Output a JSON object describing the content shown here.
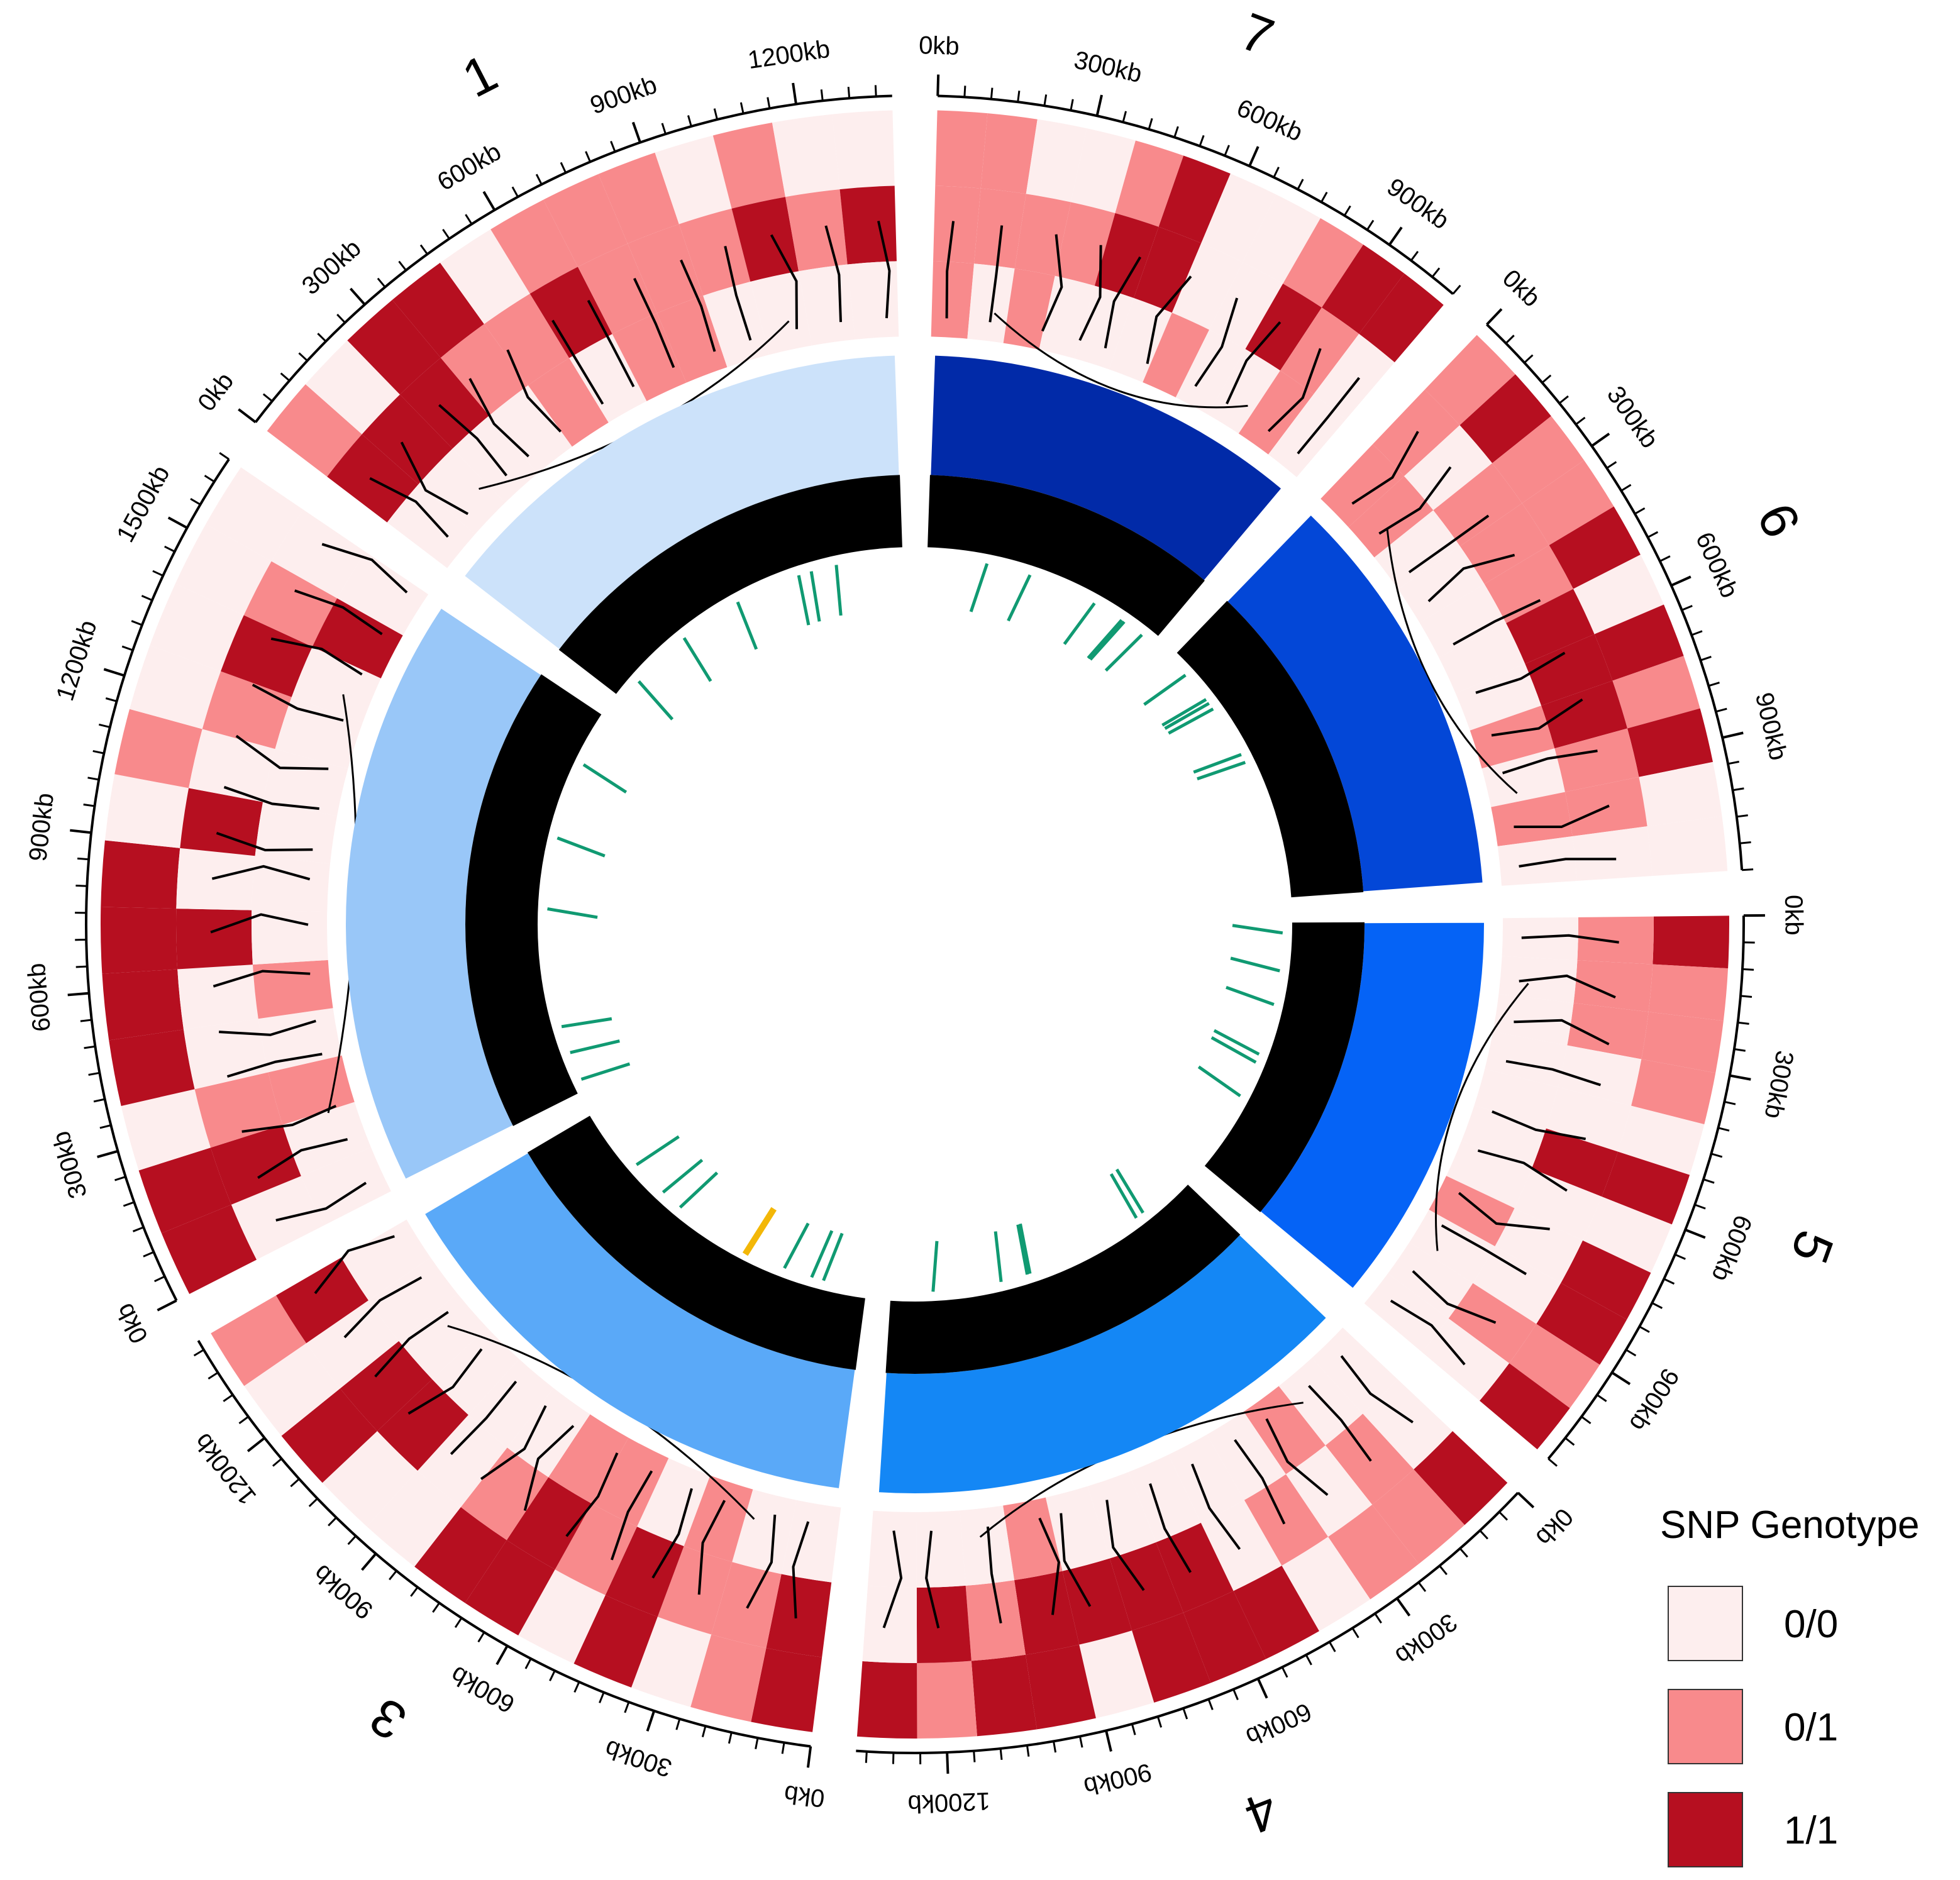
{
  "chart_data": {
    "type": "circos",
    "title": "",
    "chromosomes": [
      {
        "id": "1",
        "label": "1",
        "length_kb": 1380,
        "ideogram_color": "#cce2fa",
        "tick_labels": [
          "0kb",
          "300kb",
          "600kb",
          "900kb",
          "1200kb"
        ],
        "genotype_tracks": [
          [
            "0/1",
            "0/0",
            "1/1",
            "1/1",
            "0/0",
            "0/1",
            "0/1",
            "0/1",
            "0/0",
            "0/1",
            "0/0",
            "0/0"
          ],
          [
            "1/1",
            "1/1",
            "1/1",
            "0/1",
            "0/1",
            "1/1",
            "0/1",
            "0/1",
            "0/1",
            "1/1",
            "0/1",
            "1/1"
          ],
          [
            "0/0",
            "0/0",
            "0/0",
            "0/0",
            "0/1",
            "0/0",
            "0/1",
            "0/1",
            "0/0",
            "0/0",
            "0/0",
            "0/0"
          ]
        ]
      },
      {
        "id": "2",
        "label": "2",
        "length_kb": 1650,
        "ideogram_color": "#99c7f8",
        "tick_labels": [
          "0kb",
          "300kb",
          "600kb",
          "900kb",
          "1200kb",
          "1500kb"
        ],
        "genotype_tracks": [
          [
            "1/1",
            "1/1",
            "0/0",
            "1/1",
            "1/1",
            "1/1",
            "1/1",
            "0/0",
            "0/1",
            "0/0",
            "0/0",
            "0/0",
            "0/0"
          ],
          [
            "0/0",
            "1/1",
            "0/1",
            "0/0",
            "0/0",
            "1/1",
            "0/0",
            "1/1",
            "0/0",
            "0/1",
            "1/1",
            "0/1",
            "0/0"
          ],
          [
            "0/0",
            "0/0",
            "0/1",
            "0/0",
            "0/1",
            "0/0",
            "0/0",
            "0/0",
            "0/0",
            "0/0",
            "0/0",
            "1/1",
            "0/0"
          ]
        ]
      },
      {
        "id": "3",
        "label": "3",
        "length_kb": 1420,
        "ideogram_color": "#5aa9f8",
        "tick_labels": [
          "0kb",
          "300kb",
          "600kb",
          "900kb",
          "1200kb"
        ],
        "genotype_tracks": [
          [
            "1/1",
            "0/1",
            "0/0",
            "1/1",
            "0/0",
            "1/1",
            "1/1",
            "0/0",
            "0/0",
            "1/1",
            "0/0",
            "0/1"
          ],
          [
            "1/1",
            "0/1",
            "0/1",
            "1/1",
            "0/1",
            "1/1",
            "0/1",
            "0/0",
            "1/1",
            "1/1",
            "0/0",
            "1/1"
          ],
          [
            "0/0",
            "0/0",
            "0/1",
            "0/0",
            "0/1",
            "0/1",
            "0/0",
            "0/0",
            "0/0",
            "0/0",
            "0/0",
            "0/0"
          ]
        ]
      },
      {
        "id": "4",
        "label": "4",
        "length_kb": 1370,
        "ideogram_color": "#1487f5",
        "tick_labels": [
          "0kb",
          "300kb",
          "600kb",
          "900kb",
          "1200kb"
        ],
        "genotype_tracks": [
          [
            "1/1",
            "0/1",
            "0/1",
            "0/0",
            "1/1",
            "1/1",
            "1/1",
            "0/0",
            "1/1",
            "1/1",
            "0/1",
            "1/1"
          ],
          [
            "0/0",
            "0/1",
            "0/0",
            "0/1",
            "0/0",
            "1/1",
            "1/1",
            "1/1",
            "1/1",
            "0/1",
            "1/1",
            "0/0"
          ],
          [
            "0/0",
            "0/0",
            "0/1",
            "0/0",
            "0/0",
            "0/0",
            "0/0",
            "0/0",
            "0/1",
            "0/0",
            "0/0",
            "0/0"
          ]
        ]
      },
      {
        "id": "5",
        "label": "5",
        "length_kb": 1100,
        "ideogram_color": "#0563f6",
        "tick_labels": [
          "0kb",
          "300kb",
          "600kb",
          "900kb"
        ],
        "genotype_tracks": [
          [
            "1/1",
            "0/1",
            "0/1",
            "0/1",
            "0/0",
            "1/1",
            "0/0",
            "1/1",
            "1/1",
            "0/1",
            "1/1"
          ],
          [
            "0/1",
            "0/1",
            "0/1",
            "0/0",
            "0/0",
            "1/1",
            "0/0",
            "0/0",
            "0/0",
            "0/1",
            "0/0"
          ],
          [
            "0/0",
            "0/0",
            "0/0",
            "0/0",
            "0/0",
            "0/0",
            "0/0",
            "0/1",
            "0/0",
            "0/0",
            "0/0"
          ]
        ]
      },
      {
        "id": "6",
        "label": "6",
        "length_kb": 1150,
        "ideogram_color": "#0347d7",
        "tick_labels": [
          "0kb",
          "300kb",
          "600kb",
          "900kb"
        ],
        "genotype_tracks": [
          [
            "0/1",
            "1/1",
            "0/1",
            "0/1",
            "1/1",
            "0/0",
            "1/1",
            "0/1",
            "1/1",
            "0/0",
            "0/0"
          ],
          [
            "0/1",
            "0/0",
            "0/1",
            "0/1",
            "0/1",
            "1/1",
            "1/1",
            "1/1",
            "0/1",
            "0/1",
            "0/0"
          ],
          [
            "0/1",
            "0/1",
            "0/0",
            "0/0",
            "0/0",
            "0/0",
            "0/0",
            "0/1",
            "0/0",
            "0/1",
            "0/0"
          ]
        ]
      },
      {
        "id": "7",
        "label": "7",
        "length_kb": 1050,
        "ideogram_color": "#012aa8",
        "tick_labels": [
          "0kb",
          "300kb",
          "600kb",
          "900kb"
        ],
        "genotype_tracks": [
          [
            "0/1",
            "0/1",
            "0/0",
            "0/0",
            "0/1",
            "1/1",
            "0/0",
            "0/0",
            "0/1",
            "1/1",
            "1/1"
          ],
          [
            "0/1",
            "0/1",
            "0/1",
            "0/1",
            "1/1",
            "1/1",
            "0/0",
            "0/0",
            "1/1",
            "0/1",
            "0/0"
          ],
          [
            "0/1",
            "0/0",
            "0/1",
            "0/0",
            "0/0",
            "0/0",
            "0/1",
            "0/0",
            "0/0",
            "0/1",
            "0/0"
          ]
        ]
      }
    ],
    "genotype_colors": {
      "0/0": "#fdeeee",
      "0/1": "#f88a8c",
      "1/1": "#b60f20"
    },
    "coverage_track_color": "#000000",
    "marker_color": "#109a72",
    "highlight_marker_color": "#f3b707",
    "legend": {
      "title": "SNP Genotype",
      "items": [
        {
          "label": "0/0",
          "color": "#fdeeee"
        },
        {
          "label": "0/1",
          "color": "#f88a8c"
        },
        {
          "label": "1/1",
          "color": "#b60f20"
        }
      ],
      "placement": "bottom-right"
    }
  }
}
